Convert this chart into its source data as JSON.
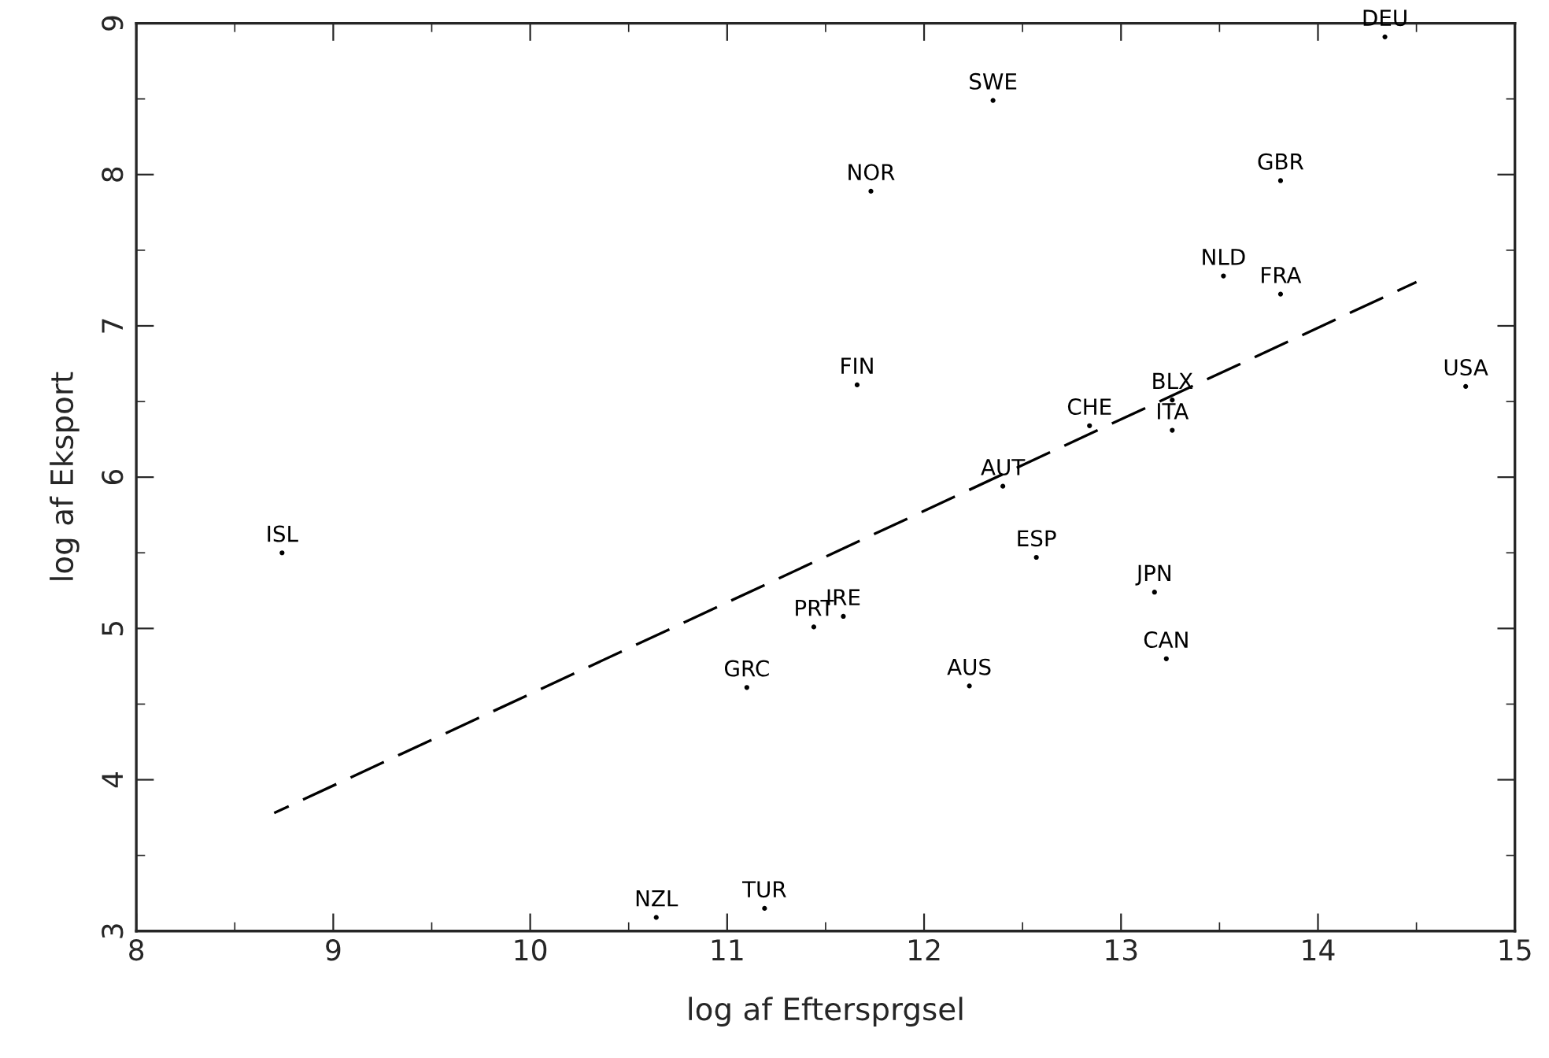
{
  "chart_data": {
    "type": "scatter",
    "xlabel": "log af Eftersprgsel",
    "ylabel": "log af Eksport",
    "xlim": [
      8,
      15
    ],
    "ylim": [
      3,
      9
    ],
    "xticks": [
      8,
      9,
      10,
      11,
      12,
      13,
      14,
      15
    ],
    "yticks": [
      3,
      4,
      5,
      6,
      7,
      8,
      9
    ],
    "grid": false,
    "series": [
      {
        "type": "scatter",
        "marker": "circle",
        "color": "#000000",
        "x": [
          14.34,
          12.35,
          13.81,
          11.73,
          13.52,
          13.81,
          11.66,
          14.75,
          13.26,
          12.84,
          13.26,
          12.4,
          8.74,
          12.57,
          13.17,
          11.59,
          11.44,
          13.23,
          11.1,
          12.23,
          11.19,
          10.64
        ],
        "values": [
          8.91,
          8.49,
          7.96,
          7.89,
          7.33,
          7.21,
          6.61,
          6.6,
          6.51,
          6.34,
          6.31,
          5.94,
          5.5,
          5.47,
          5.24,
          5.08,
          5.01,
          4.8,
          4.61,
          4.62,
          3.15,
          3.09
        ],
        "value_labels": [
          "DEU",
          "SWE",
          "GBR",
          "NOR",
          "NLD",
          "FRA",
          "FIN",
          "USA",
          "BLX",
          "CHE",
          "ITA",
          "AUT",
          "ISL",
          "ESP",
          "JPN",
          "IRE",
          "PRT",
          "CAN",
          "GRC",
          "AUS",
          "TUR",
          "NZL"
        ]
      },
      {
        "type": "line",
        "line_style": "dashed",
        "color": "#000000",
        "x": [
          8.7,
          14.5
        ],
        "values": [
          3.78,
          7.29
        ]
      }
    ]
  }
}
